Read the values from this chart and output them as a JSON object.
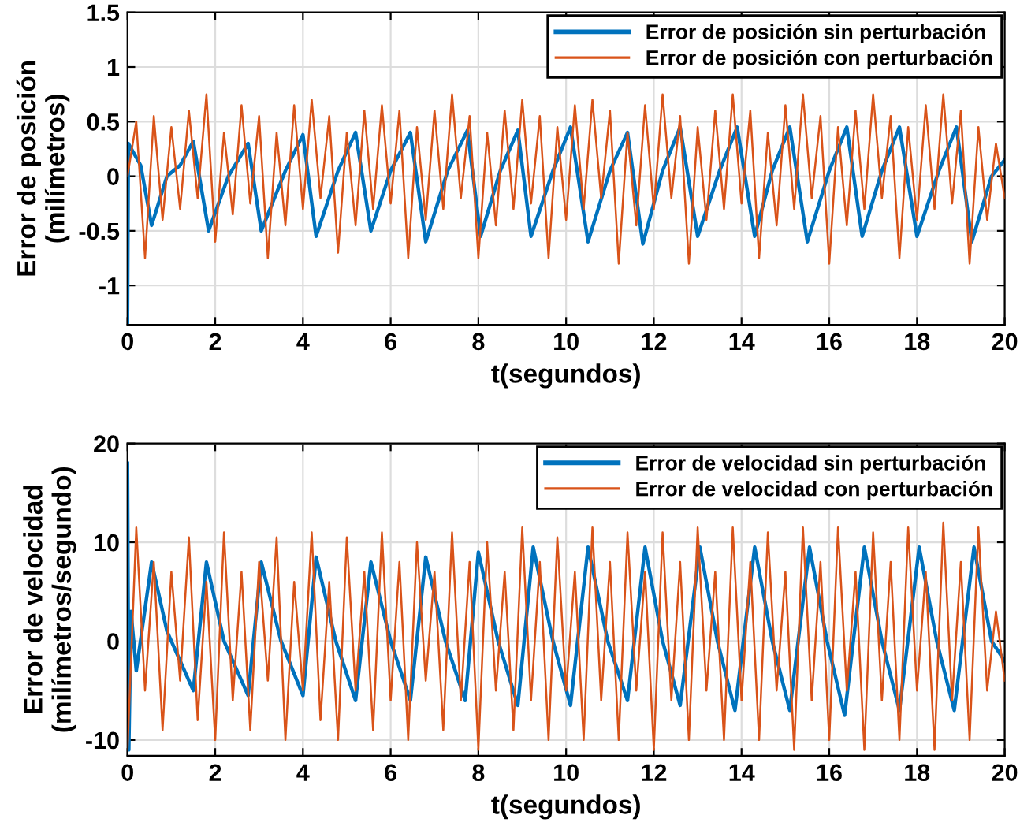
{
  "chart_data": [
    {
      "type": "line",
      "xlabel": "t(segundos)",
      "ylabel": "Error de posición\n(milímetros)",
      "xlim": [
        0,
        20
      ],
      "xticks": [
        0,
        2,
        4,
        6,
        8,
        10,
        12,
        14,
        16,
        18,
        20
      ],
      "ylim": [
        -1.36,
        1.5
      ],
      "yticks": [
        -1,
        -0.5,
        0,
        0.5,
        1,
        1.5
      ],
      "grid": true,
      "legend": "top right",
      "line_style": "solid",
      "marker": "none",
      "series": [
        {
          "name": "Error de posición sin perturbación",
          "color": "#0072bd",
          "x": [
            0,
            0.02,
            0.3,
            0.55,
            0.9,
            1.2,
            1.5,
            1.85,
            2.3,
            2.75,
            3.05,
            3.6,
            4.0,
            4.3,
            4.8,
            5.2,
            5.55,
            6.0,
            6.45,
            6.8,
            7.3,
            7.75,
            8.05,
            8.5,
            8.9,
            9.2,
            9.7,
            10.1,
            10.5,
            11.0,
            11.4,
            11.75,
            12.2,
            12.6,
            13.0,
            13.5,
            13.9,
            14.3,
            14.7,
            15.1,
            15.5,
            16.0,
            16.4,
            16.75,
            17.2,
            17.6,
            18.0,
            18.5,
            18.9,
            19.25,
            19.7,
            20
          ],
          "values": [
            -1.35,
            0.3,
            0.1,
            -0.45,
            0.0,
            0.1,
            0.32,
            -0.5,
            0.0,
            0.3,
            -0.5,
            0.05,
            0.38,
            -0.55,
            0.05,
            0.4,
            -0.5,
            0.05,
            0.4,
            -0.6,
            0.05,
            0.42,
            -0.55,
            0.05,
            0.42,
            -0.55,
            0.05,
            0.45,
            -0.6,
            0.05,
            0.4,
            -0.62,
            0.05,
            0.45,
            -0.55,
            0.05,
            0.45,
            -0.55,
            0.05,
            0.45,
            -0.6,
            0.05,
            0.45,
            -0.55,
            0.05,
            0.45,
            -0.55,
            0.05,
            0.45,
            -0.6,
            0.0,
            0.15
          ]
        },
        {
          "name": "Error de posición con perturbación",
          "color": "#d95319",
          "x": [
            0,
            0.2,
            0.4,
            0.6,
            0.8,
            1,
            1.2,
            1.4,
            1.6,
            1.8,
            2,
            2.2,
            2.4,
            2.6,
            2.8,
            3,
            3.2,
            3.4,
            3.6,
            3.8,
            4,
            4.2,
            4.4,
            4.6,
            4.8,
            5,
            5.2,
            5.4,
            5.6,
            5.8,
            6,
            6.2,
            6.4,
            6.6,
            6.8,
            7,
            7.2,
            7.4,
            7.6,
            7.8,
            8,
            8.2,
            8.4,
            8.6,
            8.8,
            9,
            9.2,
            9.4,
            9.6,
            9.8,
            10,
            10.2,
            10.4,
            10.6,
            10.8,
            11,
            11.2,
            11.4,
            11.6,
            11.8,
            12,
            12.2,
            12.4,
            12.6,
            12.8,
            13,
            13.2,
            13.4,
            13.6,
            13.8,
            14,
            14.2,
            14.4,
            14.6,
            14.8,
            15,
            15.2,
            15.4,
            15.6,
            15.8,
            16,
            16.2,
            16.4,
            16.6,
            16.8,
            17,
            17.2,
            17.4,
            17.6,
            17.8,
            18,
            18.2,
            18.4,
            18.6,
            18.8,
            19,
            19.2,
            19.4,
            19.6,
            19.8,
            20
          ],
          "values": [
            0.0,
            0.5,
            -0.75,
            0.55,
            -0.4,
            0.45,
            -0.3,
            0.6,
            -0.2,
            0.75,
            -0.6,
            0.4,
            -0.35,
            0.65,
            -0.25,
            0.55,
            -0.75,
            0.4,
            -0.45,
            0.65,
            -0.3,
            0.7,
            -0.2,
            0.55,
            -0.7,
            0.4,
            -0.45,
            0.6,
            -0.3,
            0.65,
            -0.25,
            0.6,
            -0.75,
            0.45,
            -0.4,
            0.6,
            -0.3,
            0.75,
            -0.2,
            0.55,
            -0.75,
            0.4,
            -0.45,
            0.6,
            -0.3,
            0.7,
            -0.25,
            0.55,
            -0.75,
            0.45,
            -0.4,
            0.65,
            -0.3,
            0.7,
            -0.2,
            0.6,
            -0.8,
            0.4,
            -0.45,
            0.65,
            -0.3,
            0.75,
            -0.2,
            0.55,
            -0.8,
            0.45,
            -0.4,
            0.6,
            -0.3,
            0.75,
            -0.25,
            0.6,
            -0.75,
            0.4,
            -0.45,
            0.65,
            -0.3,
            0.75,
            -0.2,
            0.55,
            -0.8,
            0.45,
            -0.45,
            0.6,
            -0.3,
            0.75,
            -0.2,
            0.55,
            -0.75,
            0.45,
            -0.4,
            0.65,
            -0.3,
            0.75,
            -0.25,
            0.6,
            -0.8,
            0.45,
            -0.4,
            0.3,
            -0.2
          ]
        }
      ]
    },
    {
      "type": "line",
      "xlabel": "t(segundos)",
      "ylabel": "Error de velocidad\n(milímetros/segundo)",
      "xlim": [
        0,
        20
      ],
      "xticks": [
        0,
        2,
        4,
        6,
        8,
        10,
        12,
        14,
        16,
        18,
        20
      ],
      "ylim": [
        -11.6,
        20
      ],
      "yticks": [
        -10,
        0,
        10,
        20
      ],
      "grid": true,
      "legend": "top right",
      "line_style": "solid",
      "marker": "none",
      "series": [
        {
          "name": "Error de velocidad sin perturbación",
          "color": "#0072bd",
          "x": [
            0,
            0.03,
            0.08,
            0.2,
            0.55,
            0.9,
            1.2,
            1.5,
            1.8,
            2.2,
            2.75,
            3.05,
            3.5,
            4.0,
            4.3,
            4.75,
            5.2,
            5.55,
            6.0,
            6.45,
            6.8,
            7.25,
            7.7,
            8.0,
            8.45,
            8.9,
            9.25,
            9.7,
            10.1,
            10.5,
            10.95,
            11.4,
            11.8,
            12.2,
            12.6,
            13.05,
            13.45,
            13.85,
            14.3,
            14.7,
            15.1,
            15.55,
            15.95,
            16.35,
            16.8,
            17.2,
            17.6,
            18.05,
            18.45,
            18.85,
            19.3,
            19.7,
            20
          ],
          "values": [
            18,
            -11,
            3,
            -3,
            8,
            1,
            -2,
            -5,
            8,
            0,
            -5.5,
            8,
            0,
            -5.5,
            8.5,
            0,
            -6,
            8,
            0,
            -6,
            8.5,
            0,
            -6,
            9,
            0,
            -6.5,
            9.5,
            0,
            -6.5,
            9.5,
            0,
            -6,
            9.5,
            0,
            -6.5,
            9.5,
            0,
            -7,
            9.5,
            0,
            -7,
            9.5,
            0,
            -7.5,
            9.5,
            0,
            -7,
            9.5,
            0,
            -7,
            9.5,
            0,
            -2
          ]
        },
        {
          "name": "Error de velocidad con perturbación",
          "color": "#d95319",
          "x": [
            0,
            0.2,
            0.4,
            0.6,
            0.8,
            1,
            1.2,
            1.4,
            1.6,
            1.8,
            2,
            2.2,
            2.4,
            2.6,
            2.8,
            3,
            3.2,
            3.4,
            3.6,
            3.8,
            4,
            4.2,
            4.4,
            4.6,
            4.8,
            5,
            5.2,
            5.4,
            5.6,
            5.8,
            6,
            6.2,
            6.4,
            6.6,
            6.8,
            7,
            7.2,
            7.4,
            7.6,
            7.8,
            8,
            8.2,
            8.4,
            8.6,
            8.8,
            9,
            9.2,
            9.4,
            9.6,
            9.8,
            10,
            10.2,
            10.4,
            10.6,
            10.8,
            11,
            11.2,
            11.4,
            11.6,
            11.8,
            12,
            12.2,
            12.4,
            12.6,
            12.8,
            13,
            13.2,
            13.4,
            13.6,
            13.8,
            14,
            14.2,
            14.4,
            14.6,
            14.8,
            15,
            15.2,
            15.4,
            15.6,
            15.8,
            16,
            16.2,
            16.4,
            16.6,
            16.8,
            17,
            17.2,
            17.4,
            17.6,
            17.8,
            18,
            18.2,
            18.4,
            18.6,
            18.8,
            19,
            19.2,
            19.4,
            19.6,
            19.8,
            20
          ],
          "values": [
            -11,
            11.5,
            -5,
            8,
            -9,
            7,
            -4,
            10.5,
            -8,
            6,
            -10,
            11,
            -6,
            7,
            -9,
            8,
            -4,
            10.5,
            -10,
            6,
            -5,
            11,
            -8,
            6,
            -10,
            10.5,
            -5,
            7,
            -9,
            11,
            -6,
            8,
            -10,
            10,
            -4,
            7,
            -9,
            11,
            -6,
            8,
            -11,
            10,
            -5,
            7,
            -9,
            11.5,
            -6,
            8,
            -10,
            10.5,
            -5,
            7,
            -10,
            11.5,
            -6,
            8,
            -10,
            11,
            -5,
            7,
            -11,
            11,
            -6,
            8,
            -10,
            11.5,
            -5,
            7,
            -10,
            11.5,
            -6,
            8,
            -10,
            11,
            -5,
            7,
            -11,
            11.5,
            -6,
            8,
            -10,
            11.5,
            -5,
            7,
            -11,
            11,
            -6,
            8,
            -10,
            11.5,
            -5,
            7,
            -11,
            12,
            -6,
            8,
            -10,
            11.5,
            -5,
            3,
            -4
          ]
        }
      ]
    }
  ]
}
